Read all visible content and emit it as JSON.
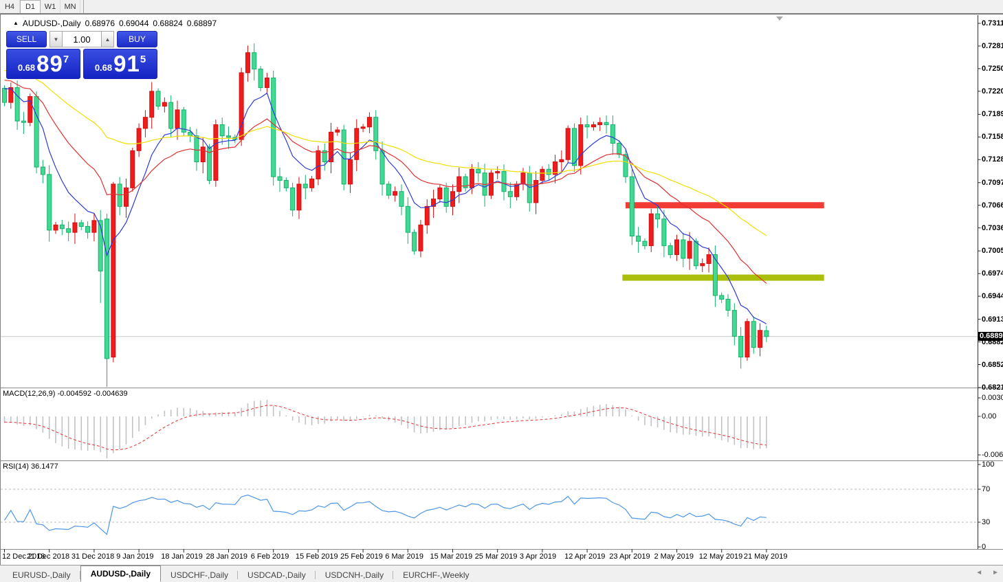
{
  "toolbar": {
    "timeframes": [
      {
        "label": "H4",
        "active": false
      },
      {
        "label": "D1",
        "active": true
      },
      {
        "label": "W1",
        "active": false
      },
      {
        "label": "MN",
        "active": false
      }
    ]
  },
  "chart_header": {
    "symbol": "AUDUSD-,Daily",
    "open": "0.68976",
    "high": "0.69044",
    "low": "0.68824",
    "close": "0.68897"
  },
  "trade_panel": {
    "sell_label": "SELL",
    "buy_label": "BUY",
    "lot_value": "1.00",
    "spin_down_icon": "▼",
    "spin_up_icon": "▲",
    "sell_price": {
      "prefix": "0.68",
      "big": "89",
      "sup": "7"
    },
    "buy_price": {
      "prefix": "0.68",
      "big": "91",
      "sup": "5"
    }
  },
  "price_axis": {
    "ticks": [
      "0.73115",
      "0.72810",
      "0.72505",
      "0.72200",
      "0.71890",
      "0.71585",
      "0.71280",
      "0.70970",
      "0.70665",
      "0.70360",
      "0.70050",
      "0.69745",
      "0.69440",
      "0.69130",
      "0.68825",
      "0.68520",
      "0.68210"
    ],
    "current_price": "0.68897",
    "top_value": 0.73115,
    "bottom_value": 0.6821
  },
  "macd_panel": {
    "name": "MACD(12,26,9)",
    "values": "-0.004592 -0.004639",
    "scale_ticks": [
      "0.003035",
      "0.00",
      "-0.00631"
    ],
    "scale_max": 0.003035,
    "scale_min": -0.00631,
    "histogram_color": "#c2c2c2",
    "signal_color": "#e03131"
  },
  "rsi_panel": {
    "name": "RSI(14)",
    "value": "36.1477",
    "scale_ticks": [
      "100",
      "70",
      "30",
      "0"
    ],
    "levels": [
      70,
      30
    ],
    "line_color": "#4d96e8"
  },
  "date_axis": {
    "labels": [
      "12 Dec 2018",
      "21 Dec 2018",
      "31 Dec 2018",
      "9 Jan 2019",
      "18 Jan 2019",
      "28 Jan 2019",
      "6 Feb 2019",
      "15 Feb 2019",
      "25 Feb 2019",
      "6 Mar 2019",
      "15 Mar 2019",
      "25 Mar 2019",
      "3 Apr 2019",
      "12 Apr 2019",
      "23 Apr 2019",
      "2 May 2019",
      "12 May 2019",
      "21 May 2019"
    ]
  },
  "tabs": {
    "items": [
      {
        "label": "EURUSD-,Daily",
        "active": false
      },
      {
        "label": "AUDUSD-,Daily",
        "active": true
      },
      {
        "label": "USDCHF-,Daily",
        "active": false
      },
      {
        "label": "USDCAD-,Daily",
        "active": false
      },
      {
        "label": "USDCNH-,Daily",
        "active": false
      },
      {
        "label": "EURCHF-,Weekly",
        "active": false
      }
    ],
    "scroll_left_icon": "◄",
    "scroll_right_icon": "►"
  },
  "chart_data": {
    "type": "candlestick",
    "title": "AUDUSD-,Daily",
    "symbol": "AUDUSD-",
    "timeframe": "Daily",
    "bull_color": "#ee1c1c",
    "bear_color": "#44d892",
    "bull_border": "#d01010",
    "bear_border": "#12b26b",
    "current_price": 0.68897,
    "current_line_color": "#c8c8c8",
    "price_top": 0.73115,
    "price_bottom": 0.6821,
    "bars_per_x_tick": 7,
    "first_open": 0.7224,
    "closes": [
      0.7205,
      0.7225,
      0.718,
      0.7178,
      0.7213,
      0.7118,
      0.7108,
      0.7033,
      0.704,
      0.7035,
      0.703,
      0.7043,
      0.7038,
      0.703,
      0.7046,
      0.6978,
      0.686,
      0.7095,
      0.7065,
      0.709,
      0.714,
      0.717,
      0.7185,
      0.722,
      0.72,
      0.7205,
      0.717,
      0.7195,
      0.7165,
      0.716,
      0.7125,
      0.7145,
      0.71,
      0.7175,
      0.716,
      0.7158,
      0.7155,
      0.7245,
      0.7272,
      0.725,
      0.7225,
      0.7238,
      0.7105,
      0.71,
      0.709,
      0.706,
      0.7095,
      0.709,
      0.7102,
      0.714,
      0.7125,
      0.7165,
      0.7168,
      0.7095,
      0.7128,
      0.717,
      0.7172,
      0.7185,
      0.714,
      0.7095,
      0.708,
      0.7085,
      0.7065,
      0.703,
      0.7005,
      0.704,
      0.7065,
      0.7075,
      0.709,
      0.7065,
      0.7085,
      0.7105,
      0.709,
      0.7115,
      0.711,
      0.708,
      0.711,
      0.7112,
      0.7085,
      0.7078,
      0.7095,
      0.711,
      0.707,
      0.71,
      0.7115,
      0.7108,
      0.7125,
      0.7128,
      0.717,
      0.712,
      0.7175,
      0.7172,
      0.7175,
      0.7178,
      0.7175,
      0.715,
      0.7135,
      0.7105,
      0.7025,
      0.7018,
      0.7012,
      0.7055,
      0.7048,
      0.7012,
      0.7,
      0.702,
      0.6995,
      0.7018,
      0.6985,
      0.6988,
      0.7,
      0.6945,
      0.694,
      0.6925,
      0.689,
      0.6862,
      0.691,
      0.6875,
      0.6898,
      0.68897
    ],
    "overrides": {
      "15": {
        "o": 0.7046,
        "h": 0.706,
        "l": 0.6935,
        "c": 0.6978
      },
      "16": {
        "o": 0.7048,
        "h": 0.7055,
        "l": 0.6745,
        "c": 0.686
      },
      "17": {
        "o": 0.6862,
        "h": 0.7098,
        "l": 0.6855,
        "c": 0.7095
      },
      "119": {
        "o": 0.68976,
        "h": 0.69044,
        "l": 0.68824,
        "c": 0.68897
      }
    },
    "prehistory": [
      0.7265,
      0.727,
      0.728,
      0.7285,
      0.7278,
      0.7272,
      0.728,
      0.7288,
      0.7282,
      0.7275,
      0.7268,
      0.7272,
      0.728,
      0.7275,
      0.7265,
      0.7258,
      0.7262,
      0.727,
      0.7262,
      0.7252,
      0.7246,
      0.7252,
      0.7258,
      0.725,
      0.7242,
      0.7236,
      0.7242,
      0.7248,
      0.7242,
      0.7234,
      0.7228,
      0.7234,
      0.724,
      0.7234,
      0.7226,
      0.722,
      0.7226,
      0.7232,
      0.7228,
      0.7222
    ],
    "moving_averages": [
      {
        "name": "fast-ma",
        "period": 8,
        "color": "#2e3bd6"
      },
      {
        "name": "mid-ma",
        "period": 21,
        "color": "#e03131"
      },
      {
        "name": "slow-ma",
        "period": 50,
        "color": "#f2de00"
      }
    ],
    "horizontal_levels": [
      {
        "name": "resistance",
        "price": 0.70665,
        "color": "#f23b35",
        "from_bar": 97,
        "to_bar": 128
      },
      {
        "name": "support",
        "price": 0.6969,
        "color": "#a9bf0b",
        "from_bar": 96.5,
        "to_bar": 128
      }
    ],
    "macd": {
      "fast": 12,
      "slow": 26,
      "signal": 9
    },
    "rsi": {
      "period": 14
    }
  }
}
